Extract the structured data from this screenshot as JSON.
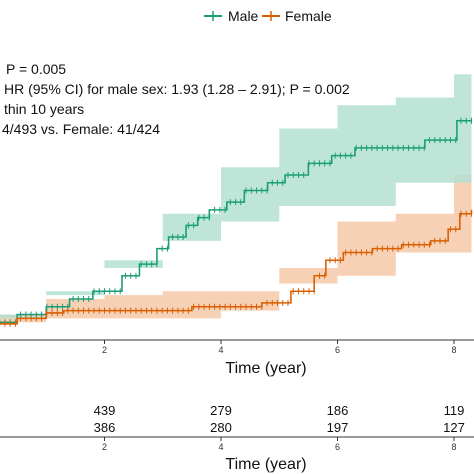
{
  "annotations": [
    "P = 0.005",
    "HR (95% CI) for male sex: 1.93 (1.28 – 2.91); P = 0.002",
    "thin 10 years",
    "4/493 vs. Female: 41/424"
  ],
  "risk_table": {
    "male": [
      "439",
      "279",
      "186",
      "119"
    ],
    "female": [
      "386",
      "280",
      "197",
      "127"
    ],
    "x_ticks": [
      "2",
      "4",
      "6",
      "8"
    ],
    "xlabel": "Time (year)"
  },
  "colors": {
    "male": "#1b9e77",
    "male_band": "#b3e0d0",
    "female": "#d95f02",
    "female_band": "#f5c9a8"
  },
  "chart_data": {
    "type": "line",
    "xlabel": "Time (year)",
    "xlim": [
      0,
      8.3
    ],
    "ylim": [
      0,
      0.4
    ],
    "x_ticks": [
      2,
      4,
      6,
      8
    ],
    "legend": {
      "position": "top",
      "entries": [
        "Male",
        "Female"
      ]
    },
    "series": [
      {
        "name": "Male",
        "steps": [
          [
            0,
            0.01
          ],
          [
            0.5,
            0.02
          ],
          [
            1,
            0.03
          ],
          [
            1.4,
            0.04
          ],
          [
            1.8,
            0.05
          ],
          [
            2.3,
            0.07
          ],
          [
            2.6,
            0.085
          ],
          [
            2.9,
            0.105
          ],
          [
            3.1,
            0.12
          ],
          [
            3.4,
            0.135
          ],
          [
            3.6,
            0.145
          ],
          [
            3.8,
            0.155
          ],
          [
            4.1,
            0.165
          ],
          [
            4.4,
            0.18
          ],
          [
            4.8,
            0.19
          ],
          [
            5.1,
            0.2
          ],
          [
            5.5,
            0.215
          ],
          [
            5.9,
            0.225
          ],
          [
            6.3,
            0.235
          ],
          [
            7.0,
            0.235
          ],
          [
            7.5,
            0.245
          ],
          [
            8.05,
            0.27
          ],
          [
            8.3,
            0.27
          ]
        ],
        "ci_lower": [
          [
            0,
            0.0
          ],
          [
            1,
            0.015
          ],
          [
            2,
            0.045
          ],
          [
            3,
            0.08
          ],
          [
            4,
            0.115
          ],
          [
            5,
            0.14
          ],
          [
            6,
            0.16
          ],
          [
            7,
            0.16
          ],
          [
            8,
            0.19
          ],
          [
            8.3,
            0.19
          ]
        ],
        "ci_upper": [
          [
            0,
            0.02
          ],
          [
            1,
            0.05
          ],
          [
            2,
            0.09
          ],
          [
            3,
            0.15
          ],
          [
            4,
            0.21
          ],
          [
            5,
            0.26
          ],
          [
            6,
            0.29
          ],
          [
            7,
            0.3
          ],
          [
            8,
            0.33
          ],
          [
            8.3,
            0.36
          ]
        ]
      },
      {
        "name": "Female",
        "steps": [
          [
            0,
            0.008
          ],
          [
            0.5,
            0.015
          ],
          [
            1,
            0.022
          ],
          [
            1.3,
            0.025
          ],
          [
            2.0,
            0.025
          ],
          [
            2.5,
            0.025
          ],
          [
            3.0,
            0.025
          ],
          [
            3.5,
            0.03
          ],
          [
            4.0,
            0.03
          ],
          [
            4.7,
            0.035
          ],
          [
            5.2,
            0.05
          ],
          [
            5.6,
            0.07
          ],
          [
            5.8,
            0.09
          ],
          [
            6.1,
            0.1
          ],
          [
            6.6,
            0.105
          ],
          [
            7.1,
            0.11
          ],
          [
            7.6,
            0.115
          ],
          [
            7.9,
            0.13
          ],
          [
            8.1,
            0.15
          ],
          [
            8.3,
            0.155
          ]
        ],
        "ci_lower": [
          [
            0,
            0.0
          ],
          [
            1,
            0.01
          ],
          [
            2,
            0.015
          ],
          [
            3,
            0.015
          ],
          [
            4,
            0.015
          ],
          [
            5,
            0.025
          ],
          [
            6,
            0.06
          ],
          [
            7,
            0.07
          ],
          [
            8,
            0.1
          ],
          [
            8.3,
            0.1
          ]
        ],
        "ci_upper": [
          [
            0,
            0.02
          ],
          [
            1,
            0.04
          ],
          [
            2,
            0.045
          ],
          [
            3,
            0.05
          ],
          [
            4,
            0.05
          ],
          [
            5,
            0.08
          ],
          [
            6,
            0.14
          ],
          [
            7,
            0.15
          ],
          [
            8,
            0.2
          ],
          [
            8.3,
            0.22
          ]
        ]
      }
    ]
  }
}
